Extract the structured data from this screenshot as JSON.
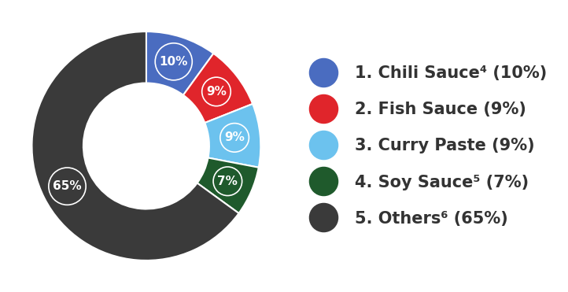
{
  "chart_data": {
    "type": "donut",
    "categories": [
      "1. Chili Sauce⁴ (10%)",
      "2. Fish Sauce (9%)",
      "3. Curry Paste (9%)",
      "4. Soy Sauce⁵ (7%)",
      "5. Others⁶ (65%)"
    ],
    "values": [
      10,
      9,
      9,
      7,
      65
    ],
    "value_labels": [
      "10%",
      "9%",
      "9%",
      "7%",
      "65%"
    ],
    "colors": [
      "#4a6cc0",
      "#e0252b",
      "#6cc2ee",
      "#1f5a2c",
      "#3a3a3a"
    ],
    "data_labels": true,
    "legend": "center left"
  }
}
